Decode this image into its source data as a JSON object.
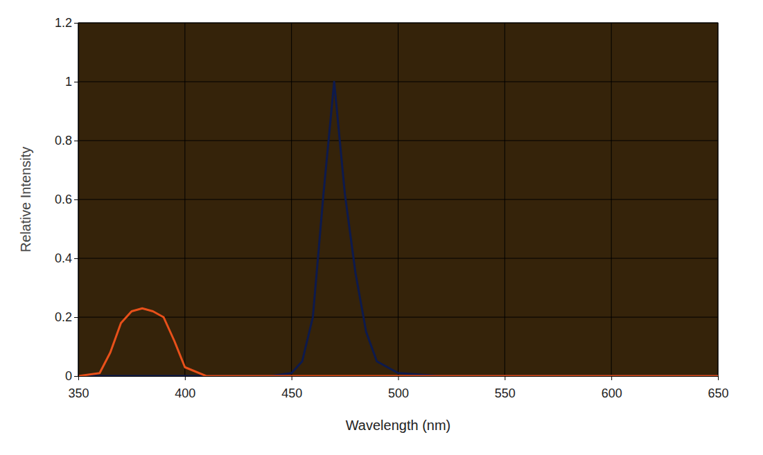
{
  "chart_data": {
    "type": "line",
    "x_label": "Wavelength (nm)",
    "y_label": "Relative Intensity",
    "x": [
      350,
      360,
      365,
      370,
      375,
      380,
      385,
      390,
      395,
      400,
      410,
      420,
      440,
      450,
      455,
      460,
      465,
      470,
      475,
      480,
      485,
      490,
      500,
      520,
      550,
      600,
      650
    ],
    "series": [
      {
        "color": "#0d1a4d",
        "values": [
          0,
          0,
          0,
          0,
          0,
          0,
          0,
          0,
          0,
          0,
          0,
          0,
          0,
          0.01,
          0.05,
          0.2,
          0.62,
          1.0,
          0.62,
          0.35,
          0.15,
          0.05,
          0.01,
          0,
          0,
          0,
          0
        ]
      },
      {
        "color": "#e8501a",
        "values": [
          0,
          0.01,
          0.08,
          0.18,
          0.22,
          0.23,
          0.22,
          0.2,
          0.12,
          0.03,
          0,
          0,
          0,
          0,
          0,
          0,
          0,
          0,
          0,
          0,
          0,
          0,
          0,
          0,
          0,
          0,
          0
        ]
      }
    ],
    "xlim": [
      350,
      650
    ],
    "xticks": [
      350,
      400,
      450,
      500,
      550,
      600,
      650
    ],
    "ylim": [
      0,
      1.2
    ],
    "yticks": [
      0,
      0.2,
      0.4,
      0.6,
      0.8,
      1,
      1.2
    ],
    "grid": true
  }
}
